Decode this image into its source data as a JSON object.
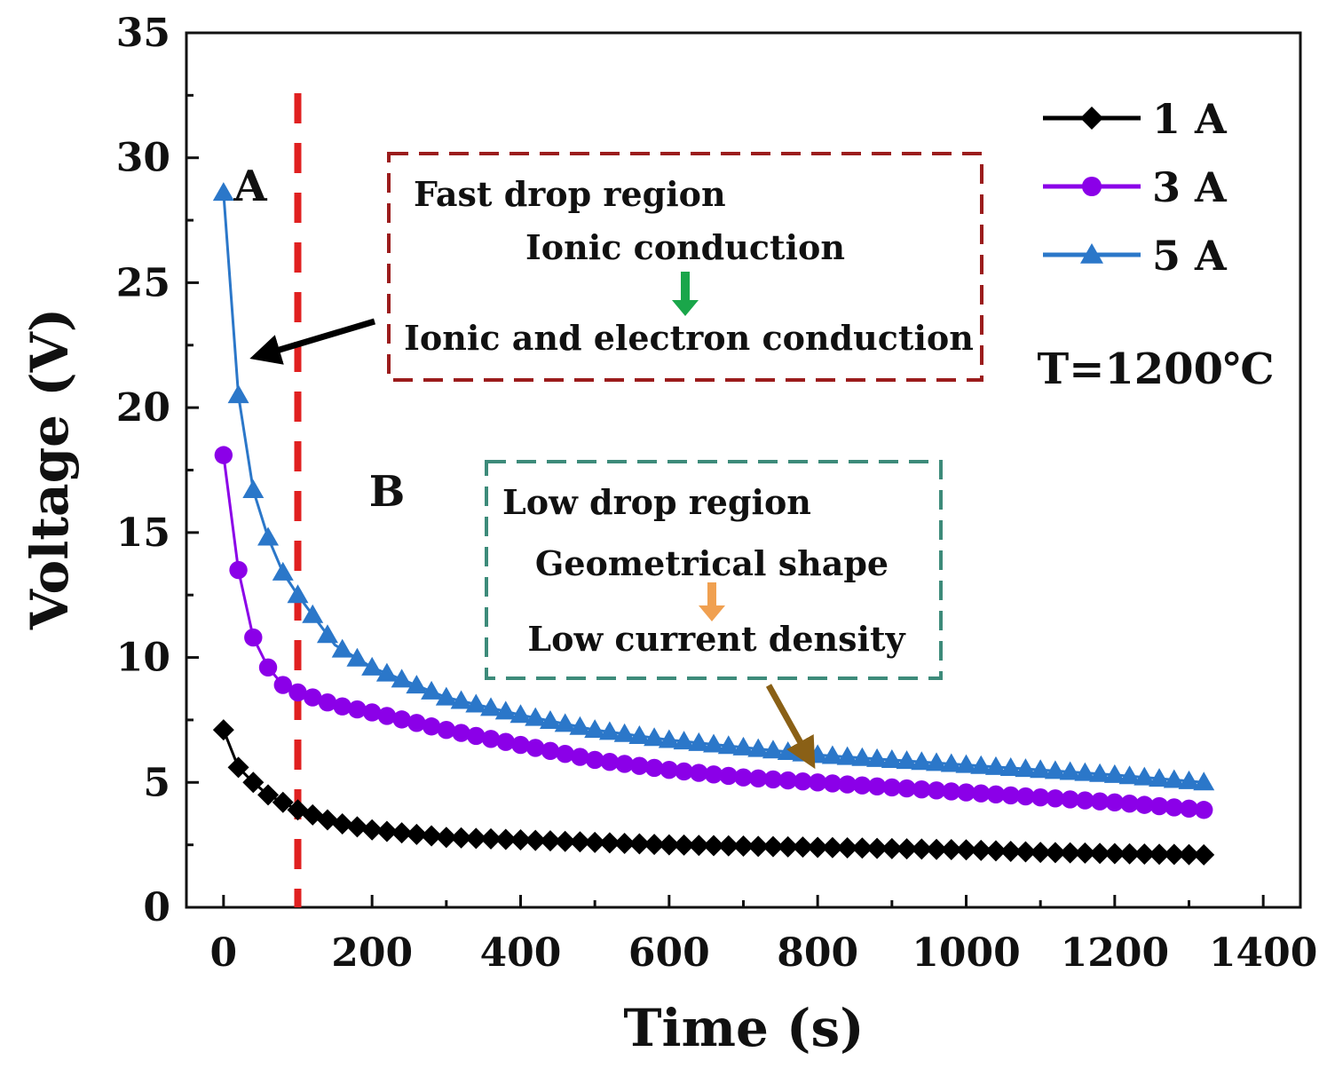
{
  "chart_data": {
    "type": "line",
    "title": "",
    "xlabel": "Time (s)",
    "ylabel": "Voltage (V)",
    "xlim": [
      -50,
      1450
    ],
    "ylim": [
      0,
      35
    ],
    "xticks": [
      0,
      200,
      400,
      600,
      800,
      1000,
      1200,
      1400
    ],
    "yticks": [
      0,
      5,
      10,
      15,
      20,
      25,
      30,
      35
    ],
    "grid": false,
    "legend_position": "top-right",
    "series": [
      {
        "name": "1 A",
        "marker": "diamond",
        "color": "#000000",
        "x": [
          0,
          20,
          40,
          60,
          80,
          100,
          150,
          200,
          300,
          400,
          500,
          600,
          700,
          800,
          900,
          1000,
          1100,
          1200,
          1320
        ],
        "values": [
          7.1,
          5.6,
          5.0,
          4.5,
          4.2,
          3.9,
          3.4,
          3.1,
          2.8,
          2.7,
          2.6,
          2.5,
          2.45,
          2.4,
          2.35,
          2.3,
          2.2,
          2.15,
          2.1
        ]
      },
      {
        "name": "3 A",
        "marker": "circle",
        "color": "#8b00e8",
        "x": [
          0,
          20,
          40,
          60,
          80,
          100,
          150,
          200,
          300,
          400,
          500,
          600,
          700,
          800,
          900,
          1000,
          1100,
          1200,
          1320
        ],
        "values": [
          18.1,
          13.5,
          10.8,
          9.6,
          8.9,
          8.6,
          8.1,
          7.8,
          7.1,
          6.5,
          5.9,
          5.5,
          5.2,
          5.0,
          4.8,
          4.6,
          4.4,
          4.2,
          3.9
        ]
      },
      {
        "name": "5 A",
        "marker": "triangle",
        "color": "#2b77c9",
        "x": [
          0,
          20,
          40,
          60,
          80,
          100,
          150,
          200,
          300,
          400,
          500,
          600,
          700,
          800,
          900,
          1000,
          1100,
          1200,
          1320
        ],
        "values": [
          28.6,
          20.5,
          16.7,
          14.8,
          13.4,
          12.5,
          10.5,
          9.6,
          8.4,
          7.7,
          7.1,
          6.7,
          6.4,
          6.1,
          5.9,
          5.7,
          5.5,
          5.3,
          5.0
        ]
      }
    ],
    "vline": {
      "x": 100,
      "color": "#e02020"
    },
    "annotations": [
      {
        "text": "A"
      },
      {
        "text": "B"
      },
      {
        "text": "T=1200℃"
      }
    ]
  },
  "box_fast": {
    "title": "Fast drop region",
    "line1": "Ionic conduction",
    "line2": "Ionic and electron conduction",
    "border_color": "#9b1c1c",
    "arrow_color": "#1aa64a"
  },
  "box_low": {
    "title": "Low drop region",
    "line1": "Geometrical shape",
    "line2": "Low current density",
    "border_color": "#3d8b7a",
    "arrow_color": "#f0a050"
  },
  "pointer_colors": {
    "fast": "#000000",
    "low": "#8a6016"
  }
}
